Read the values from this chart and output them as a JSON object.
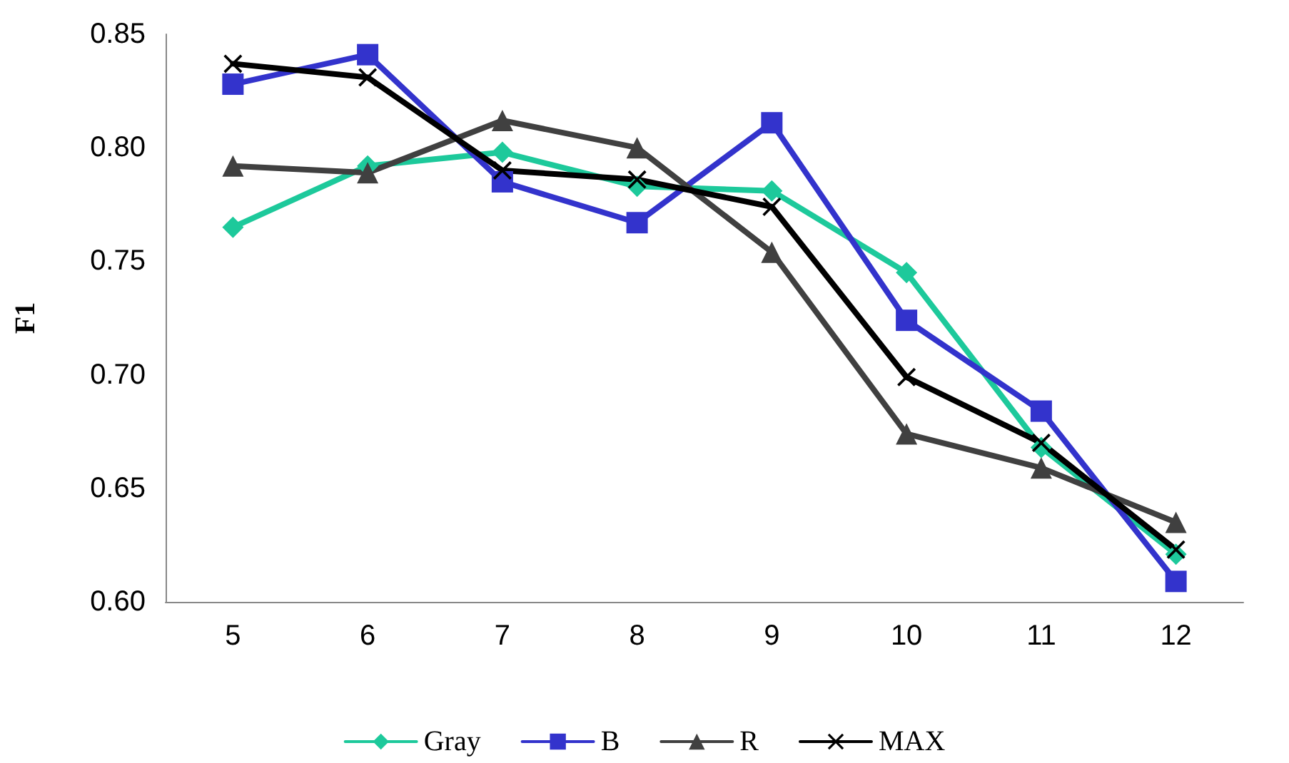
{
  "chart_data": {
    "type": "line",
    "ylabel": "F1",
    "categories": [
      "5",
      "6",
      "7",
      "8",
      "9",
      "10",
      "11",
      "12"
    ],
    "series": [
      {
        "name": "Gray",
        "color": "#1dc99b",
        "marker": "diamond",
        "values": [
          0.765,
          0.792,
          0.798,
          0.783,
          0.781,
          0.745,
          0.668,
          0.621
        ]
      },
      {
        "name": "B",
        "color": "#3333cc",
        "marker": "square",
        "values": [
          0.828,
          0.841,
          0.785,
          0.767,
          0.811,
          0.724,
          0.684,
          0.609
        ]
      },
      {
        "name": "R",
        "color": "#404040",
        "marker": "triangle",
        "values": [
          0.792,
          0.789,
          0.812,
          0.8,
          0.754,
          0.674,
          0.659,
          0.635
        ]
      },
      {
        "name": "MAX",
        "color": "#000000",
        "marker": "cross",
        "values": [
          0.837,
          0.831,
          0.79,
          0.786,
          0.774,
          0.699,
          0.67,
          0.623
        ]
      }
    ],
    "ylim": [
      0.6,
      0.85
    ],
    "yticks": [
      {
        "value": 0.6,
        "label": "0.60"
      },
      0.65,
      {
        "value": 0.7,
        "label": "0.70"
      },
      0.75,
      {
        "value": 0.8,
        "label": "0.80"
      },
      0.85
    ],
    "grid": false,
    "legend": "bottom",
    "line_style": "solid"
  }
}
